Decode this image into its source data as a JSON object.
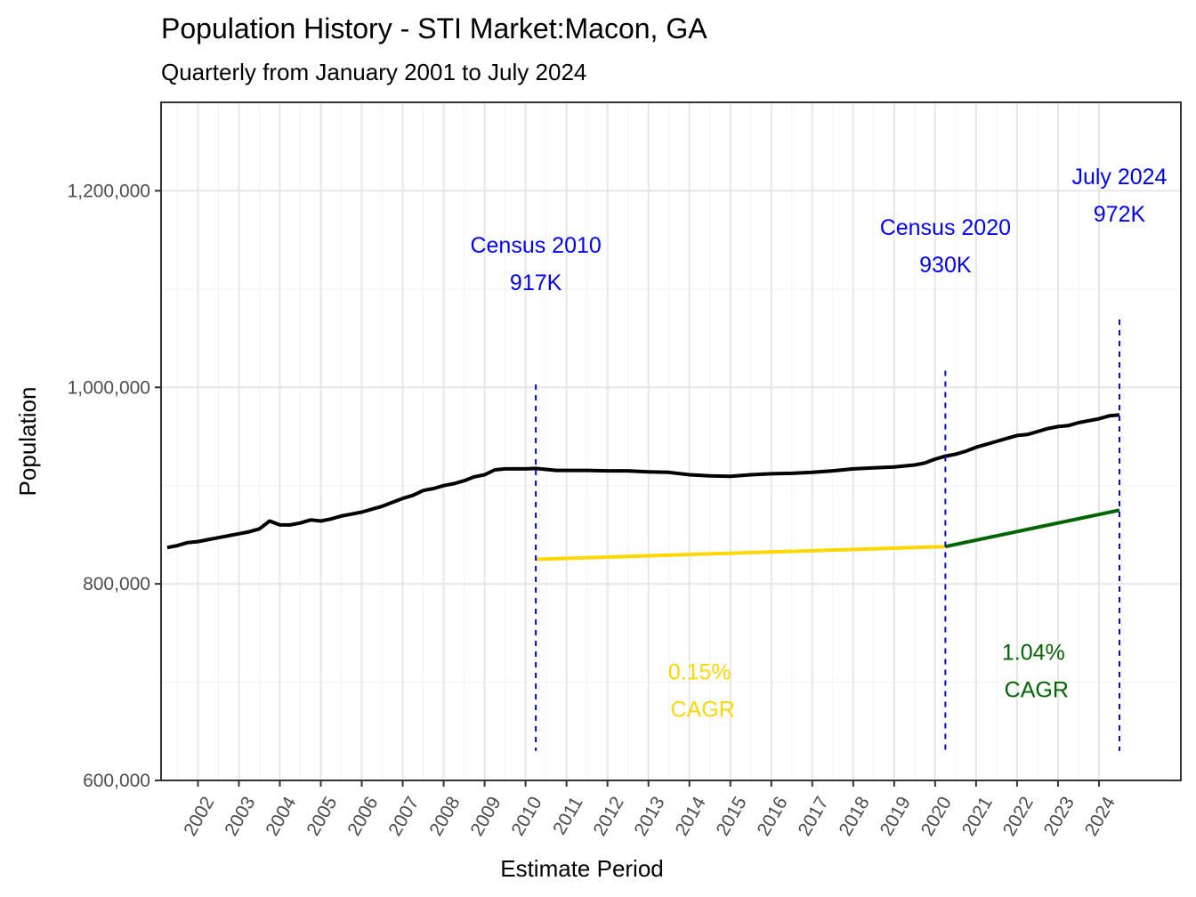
{
  "chart_data": {
    "type": "line",
    "title": "Population History - STI Market:Macon, GA",
    "subtitle": "Quarterly from January 2001 to July 2024",
    "xlabel": "Estimate Period",
    "ylabel": "Population",
    "xlim": [
      2001.1,
      2026.0
    ],
    "ylim": [
      600000,
      1290000
    ],
    "y_ticks": [
      600000,
      800000,
      1000000,
      1200000
    ],
    "y_tick_labels": [
      "600,000",
      "800,000",
      "1,000,000",
      "1,200,000"
    ],
    "x_ticks": [
      2002,
      2003,
      2004,
      2005,
      2006,
      2007,
      2008,
      2009,
      2010,
      2011,
      2012,
      2013,
      2014,
      2015,
      2016,
      2017,
      2018,
      2019,
      2020,
      2021,
      2022,
      2023,
      2024
    ],
    "grid": true,
    "series": [
      {
        "color": "#000000",
        "x": [
          2001.25,
          2001.5,
          2001.75,
          2002.0,
          2002.25,
          2002.5,
          2002.75,
          2003.0,
          2003.25,
          2003.5,
          2003.75,
          2004.0,
          2004.25,
          2004.5,
          2004.75,
          2005.0,
          2005.25,
          2005.5,
          2005.75,
          2006.0,
          2006.25,
          2006.5,
          2006.75,
          2007.0,
          2007.25,
          2007.5,
          2007.75,
          2008.0,
          2008.25,
          2008.5,
          2008.75,
          2009.0,
          2009.25,
          2009.5,
          2009.75,
          2010.0,
          2010.25,
          2010.5,
          2010.75,
          2011.0,
          2011.5,
          2012.0,
          2012.5,
          2013.0,
          2013.5,
          2014.0,
          2014.5,
          2015.0,
          2015.5,
          2016.0,
          2016.5,
          2017.0,
          2017.5,
          2018.0,
          2018.5,
          2019.0,
          2019.25,
          2019.5,
          2019.75,
          2020.0,
          2020.25,
          2020.5,
          2020.75,
          2021.0,
          2021.25,
          2021.5,
          2021.75,
          2022.0,
          2022.25,
          2022.5,
          2022.75,
          2023.0,
          2023.25,
          2023.5,
          2023.75,
          2024.0,
          2024.25,
          2024.5
        ],
        "values": [
          837000,
          839000,
          842000,
          843000,
          845000,
          847000,
          849000,
          851000,
          853000,
          856000,
          864000,
          860000,
          860000,
          862000,
          865000,
          864000,
          866000,
          869000,
          871000,
          873000,
          876000,
          879000,
          883000,
          887000,
          890000,
          895000,
          897000,
          900000,
          902000,
          905000,
          909000,
          911000,
          916000,
          917000,
          917000,
          917000,
          917500,
          916500,
          915500,
          915500,
          915500,
          915000,
          915000,
          914000,
          913500,
          911000,
          910000,
          909500,
          911000,
          912000,
          912500,
          913500,
          915000,
          917000,
          918000,
          919000,
          920000,
          921000,
          923000,
          927000,
          930000,
          932000,
          935000,
          939000,
          942000,
          945000,
          948000,
          951000,
          952000,
          955000,
          958000,
          960000,
          961000,
          964000,
          966000,
          968000,
          971000,
          972000
        ]
      },
      {
        "color": "#FFD700",
        "x": [
          2010.25,
          2020.25
        ],
        "values": [
          825000,
          838000
        ]
      },
      {
        "color": "#006400",
        "x": [
          2020.25,
          2024.5
        ],
        "values": [
          838000,
          875000
        ]
      }
    ],
    "vlines": [
      {
        "x": 2010.25,
        "y_from": 630000,
        "y_to": 1003000,
        "color": "#0000FF"
      },
      {
        "x": 2020.25,
        "y_from": 630000,
        "y_to": 1017000,
        "color": "#0000FF"
      },
      {
        "x": 2024.5,
        "y_from": 630000,
        "y_to": 1069000,
        "color": "#0000FF"
      }
    ],
    "annotations": [
      {
        "lines": [
          "Census 2010",
          "917K"
        ],
        "x": 2010.25,
        "y": 1126000,
        "color": "#0000FF"
      },
      {
        "lines": [
          "Census 2020",
          "930K"
        ],
        "x": 2020.25,
        "y": 1144000,
        "color": "#0000FF"
      },
      {
        "lines": [
          "July 2024",
          "972K"
        ],
        "x": 2024.5,
        "y": 1196000,
        "color": "#0000FF"
      },
      {
        "lines": [
          "0.15%",
          " CAGR"
        ],
        "x": 2014.25,
        "y": 692000,
        "color": "#FFD700"
      },
      {
        "lines": [
          "1.04%",
          " CAGR"
        ],
        "x": 2022.4,
        "y": 712000,
        "color": "#006400"
      }
    ]
  }
}
